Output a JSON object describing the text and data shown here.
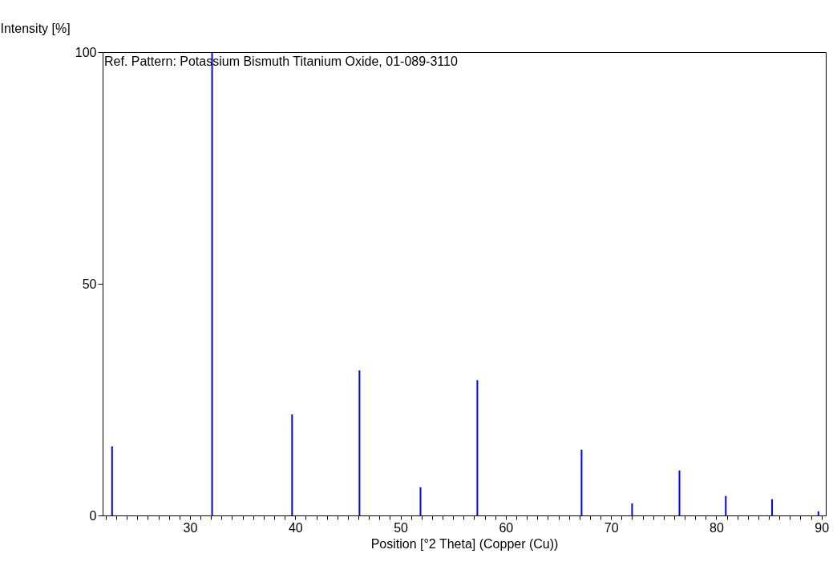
{
  "chart_data": {
    "type": "bar",
    "xlabel": "Position [°2 Theta] (Copper (Cu))",
    "ylabel": "Intensity [%]",
    "annotations": [
      "Ref. Pattern: Potassium Bismuth Titanium Oxide, 01-089-3110"
    ],
    "x": [
      22.6,
      32.1,
      39.7,
      46.1,
      51.9,
      57.3,
      67.2,
      72.0,
      76.5,
      80.9,
      85.3,
      89.7
    ],
    "values": [
      14.9,
      100,
      21.8,
      31.3,
      6.1,
      29.2,
      14.2,
      2.6,
      9.7,
      4.2,
      3.5,
      0.9
    ],
    "color": "#0000ff",
    "xlim": [
      21.7,
      90.4
    ],
    "ylim": [
      0,
      100
    ],
    "xticks": [
      {
        "value": 22,
        "label": null
      },
      {
        "value": 23,
        "label": null
      },
      {
        "value": 24,
        "label": null
      },
      {
        "value": 25,
        "label": null
      },
      {
        "value": 26,
        "label": null
      },
      {
        "value": 27,
        "label": null
      },
      {
        "value": 28,
        "label": null
      },
      {
        "value": 29,
        "label": null
      },
      30,
      {
        "value": 31,
        "label": null
      },
      {
        "value": 32,
        "label": null
      },
      {
        "value": 33,
        "label": null
      },
      {
        "value": 34,
        "label": null
      },
      {
        "value": 35,
        "label": null
      },
      {
        "value": 36,
        "label": null
      },
      {
        "value": 37,
        "label": null
      },
      {
        "value": 38,
        "label": null
      },
      {
        "value": 39,
        "label": null
      },
      40,
      {
        "value": 41,
        "label": null
      },
      {
        "value": 42,
        "label": null
      },
      {
        "value": 43,
        "label": null
      },
      {
        "value": 44,
        "label": null
      },
      {
        "value": 45,
        "label": null
      },
      {
        "value": 46,
        "label": null
      },
      {
        "value": 47,
        "label": null
      },
      {
        "value": 48,
        "label": null
      },
      {
        "value": 49,
        "label": null
      },
      50,
      {
        "value": 51,
        "label": null
      },
      {
        "value": 52,
        "label": null
      },
      {
        "value": 53,
        "label": null
      },
      {
        "value": 54,
        "label": null
      },
      {
        "value": 55,
        "label": null
      },
      {
        "value": 56,
        "label": null
      },
      {
        "value": 57,
        "label": null
      },
      {
        "value": 58,
        "label": null
      },
      {
        "value": 59,
        "label": null
      },
      60,
      {
        "value": 61,
        "label": null
      },
      {
        "value": 62,
        "label": null
      },
      {
        "value": 63,
        "label": null
      },
      {
        "value": 64,
        "label": null
      },
      {
        "value": 65,
        "label": null
      },
      {
        "value": 66,
        "label": null
      },
      {
        "value": 67,
        "label": null
      },
      {
        "value": 68,
        "label": null
      },
      {
        "value": 69,
        "label": null
      },
      70,
      {
        "value": 71,
        "label": null
      },
      {
        "value": 72,
        "label": null
      },
      {
        "value": 73,
        "label": null
      },
      {
        "value": 74,
        "label": null
      },
      {
        "value": 75,
        "label": null
      },
      {
        "value": 76,
        "label": null
      },
      {
        "value": 77,
        "label": null
      },
      {
        "value": 78,
        "label": null
      },
      {
        "value": 79,
        "label": null
      },
      80,
      {
        "value": 81,
        "label": null
      },
      {
        "value": 82,
        "label": null
      },
      {
        "value": 83,
        "label": null
      },
      {
        "value": 84,
        "label": null
      },
      {
        "value": 85,
        "label": null
      },
      {
        "value": 86,
        "label": null
      },
      {
        "value": 87,
        "label": null
      },
      {
        "value": 88,
        "label": null
      },
      {
        "value": 89,
        "label": null
      },
      90
    ],
    "yticks": [
      0,
      50,
      100
    ]
  }
}
